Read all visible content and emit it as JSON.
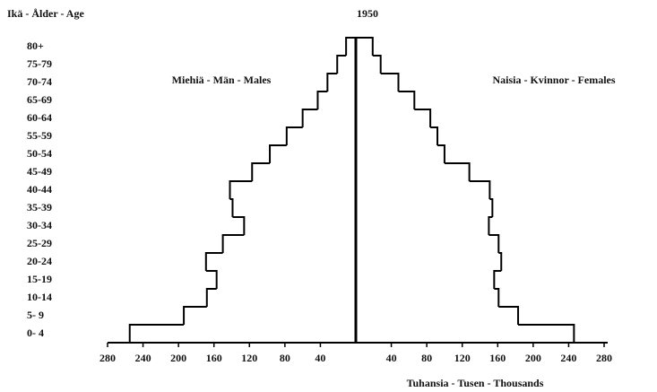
{
  "chart_data": {
    "type": "pyramid",
    "title": "1950",
    "y_label": "Ikä - Ålder - Age",
    "x_label": "Tuhansia - Tusen - Thousands",
    "categories": [
      "0- 4",
      "5- 9",
      "10-14",
      "15-19",
      "20-24",
      "25-29",
      "30-34",
      "35-39",
      "40-44",
      "45-49",
      "50-54",
      "55-59",
      "60-64",
      "65-69",
      "70-74",
      "75-79",
      "80+"
    ],
    "series": [
      {
        "name": "Miehiä - Män - Males",
        "color": "#000000",
        "values": [
          255,
          194,
          168,
          157,
          169,
          150,
          126,
          139,
          142,
          117,
          97,
          78,
          60,
          43,
          32,
          21,
          11
        ]
      },
      {
        "name": "Naisia - Kvinnor - Females",
        "color": "#000000",
        "values": [
          246,
          183,
          161,
          156,
          164,
          161,
          150,
          154,
          151,
          128,
          100,
          92,
          84,
          66,
          48,
          28,
          19
        ]
      }
    ],
    "xlim": [
      0,
      280
    ],
    "xticks": [
      40,
      80,
      120,
      160,
      200,
      240,
      280
    ]
  }
}
